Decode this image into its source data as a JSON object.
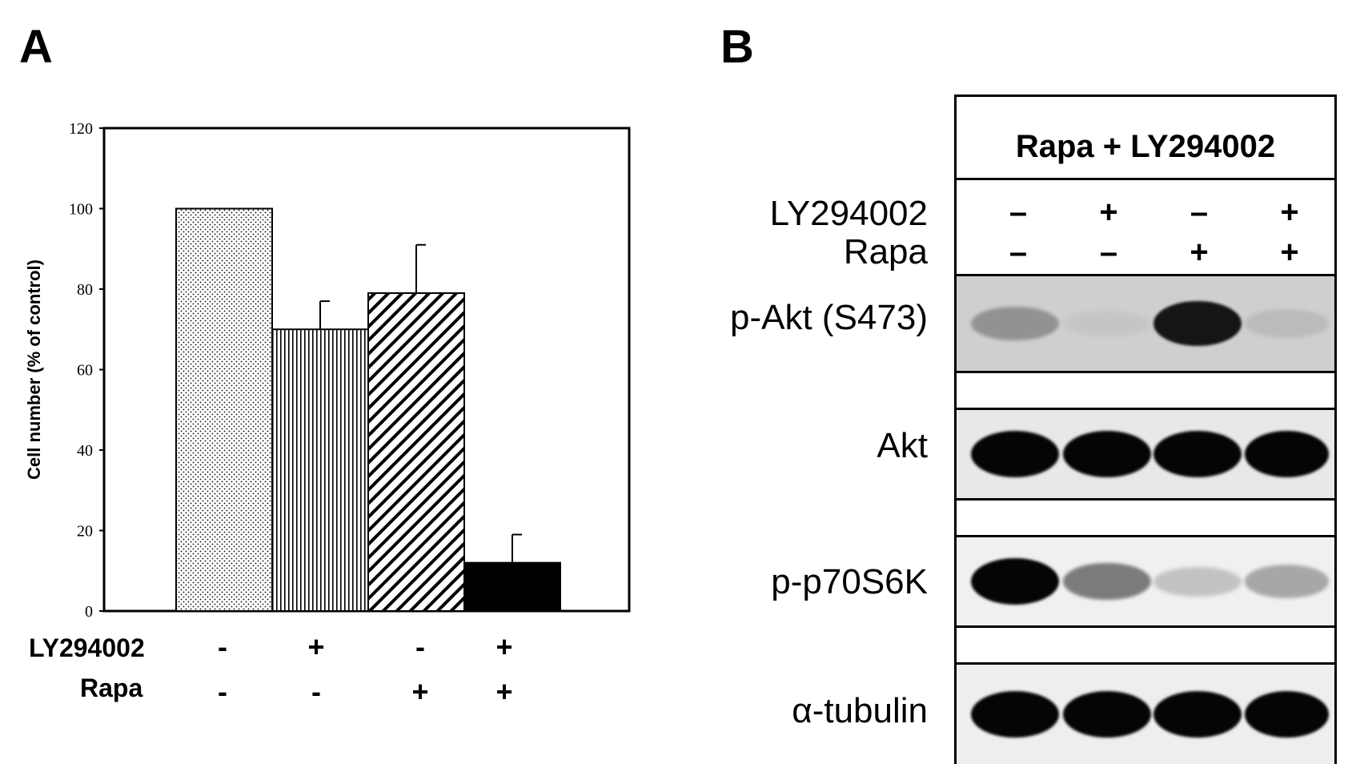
{
  "panel_a": {
    "letter": "A",
    "conditions": {
      "ly_label": "LY294002",
      "rapa_label": "Rapa",
      "ly_signs": [
        "-",
        "+",
        "-",
        "+"
      ],
      "rapa_signs": [
        "-",
        "-",
        "+",
        "+"
      ]
    }
  },
  "panel_b": {
    "letter": "B",
    "header": "Rapa + LY294002",
    "treat_ly_label": "LY294002",
    "treat_rapa_label": "Rapa",
    "ly_signs": [
      "–",
      "+",
      "–",
      "+"
    ],
    "rapa_signs": [
      "–",
      "–",
      "+",
      "+"
    ],
    "rows": [
      {
        "label": "p-Akt (S473)",
        "intensities": [
          0.45,
          0.08,
          0.95,
          0.18
        ]
      },
      {
        "label": "Akt",
        "intensities": [
          1.0,
          1.0,
          1.0,
          1.0
        ]
      },
      {
        "label": "p-p70S6K",
        "intensities": [
          1.0,
          0.6,
          0.25,
          0.4
        ]
      },
      {
        "label": "α-tubulin",
        "intensities": [
          1.0,
          1.0,
          1.0,
          1.0
        ]
      }
    ]
  },
  "chart_data": {
    "type": "bar",
    "categories": [
      "LY294002 - / Rapa -",
      "LY294002 + / Rapa -",
      "LY294002 - / Rapa +",
      "LY294002 + / Rapa +"
    ],
    "values": [
      100,
      70,
      79,
      12
    ],
    "errors": [
      0,
      7,
      12,
      7
    ],
    "patterns": [
      "dots",
      "vertical-lines",
      "diagonal-hatch",
      "solid-black"
    ],
    "ylabel": "Cell number (% of control)",
    "ylim": [
      0,
      120
    ],
    "yticks": [
      0,
      20,
      40,
      60,
      80,
      100,
      120
    ],
    "grid": false
  }
}
